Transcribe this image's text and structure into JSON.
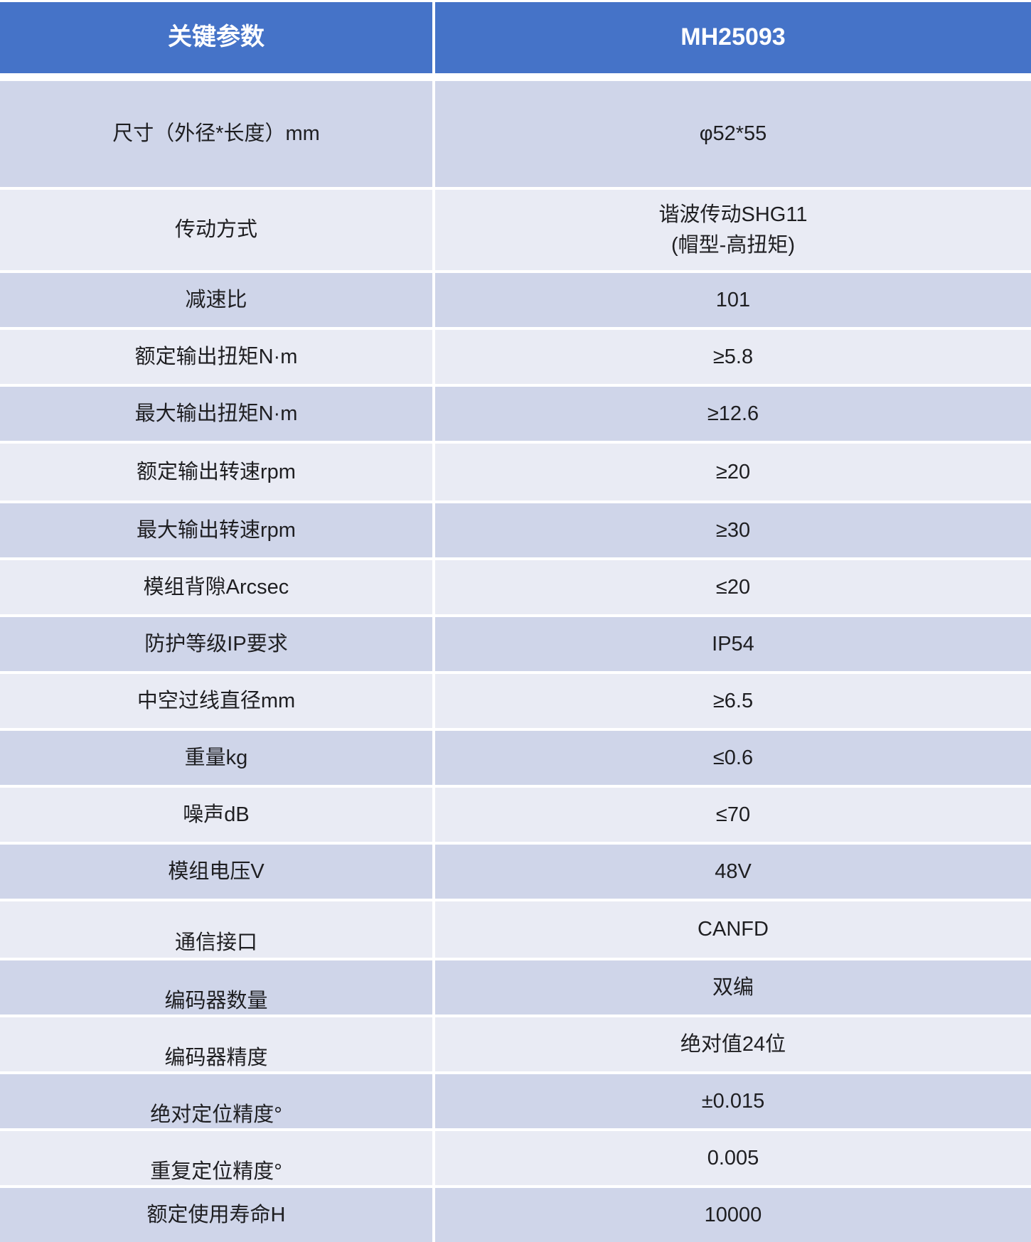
{
  "table": {
    "header": {
      "param_col": "关键参数",
      "model_col": "MH25093"
    },
    "rows": [
      {
        "label": "尺寸（外径*长度）mm",
        "value": "φ52*55"
      },
      {
        "label": "传动方式",
        "value": "谐波传动SHG11\n(帽型-高扭矩)"
      },
      {
        "label": "减速比",
        "value": "101"
      },
      {
        "label": "额定输出扭矩N·m",
        "value": "≥5.8"
      },
      {
        "label": "最大输出扭矩N·m",
        "value": "≥12.6"
      },
      {
        "label": "额定输出转速rpm",
        "value": "≥20"
      },
      {
        "label": "最大输出转速rpm",
        "value": "≥30"
      },
      {
        "label": "模组背隙Arcsec",
        "value": "≤20"
      },
      {
        "label": "防护等级IP要求",
        "value": "IP54"
      },
      {
        "label": "中空过线直径mm",
        "value": "≥6.5"
      },
      {
        "label": "重量kg",
        "value": "≤0.6"
      },
      {
        "label": "噪声dB",
        "value": "≤70"
      },
      {
        "label": "模组电压V",
        "value": "48V"
      },
      {
        "label": "通信接口",
        "value": "CANFD"
      },
      {
        "label": "编码器数量",
        "value": "双编"
      },
      {
        "label": "编码器精度",
        "value": "绝对值24位"
      },
      {
        "label": "绝对定位精度°",
        "value": "±0.015"
      },
      {
        "label": "重复定位精度°",
        "value": "0.005"
      },
      {
        "label": "额定使用寿命H",
        "value": "10000"
      }
    ],
    "colors": {
      "header_bg": "#4573c8",
      "header_text": "#ffffff",
      "row_dark": "#cfd5e9",
      "row_light": "#e9ebf4",
      "body_text": "#1e1e21",
      "divider": "#ffffff"
    }
  }
}
